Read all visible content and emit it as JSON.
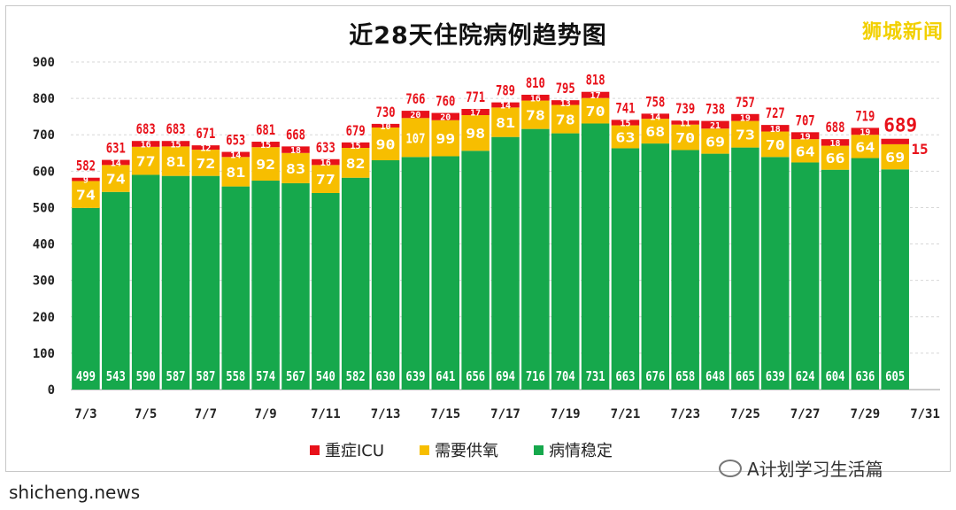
{
  "header": {
    "title": "近28天住院病例趋势图",
    "brand": "狮城新闻"
  },
  "footer": {
    "source": "shicheng.news",
    "watermark": "A计划学习生活篇"
  },
  "legend": [
    {
      "label": "重症ICU",
      "color": "#e8111a"
    },
    {
      "label": "需要供氧",
      "color": "#f7be00"
    },
    {
      "label": "病情稳定",
      "color": "#16a84c"
    }
  ],
  "chart_data": {
    "type": "bar",
    "stacked": true,
    "title": "近28天住院病例趋势图",
    "categories": [
      "7/3",
      "7/4",
      "7/5",
      "7/6",
      "7/7",
      "7/8",
      "7/9",
      "7/10",
      "7/11",
      "7/12",
      "7/13",
      "7/14",
      "7/15",
      "7/16",
      "7/17",
      "7/18",
      "7/19",
      "7/20",
      "7/21",
      "7/22",
      "7/23",
      "7/24",
      "7/25",
      "7/26",
      "7/27",
      "7/28",
      "7/29",
      "7/30",
      "7/31"
    ],
    "x_tick_labels": [
      "7/3",
      "7/5",
      "7/7",
      "7/9",
      "7/11",
      "7/13",
      "7/15",
      "7/17",
      "7/19",
      "7/21",
      "7/23",
      "7/25",
      "7/27",
      "7/29",
      "7/31"
    ],
    "y_ticks": [
      0,
      100,
      200,
      300,
      400,
      500,
      600,
      700,
      800,
      900
    ],
    "ylim": [
      0,
      900
    ],
    "gridlines": true,
    "legend_position": "bottom",
    "series": [
      {
        "name": "病情稳定",
        "color": "#16a84c",
        "values": [
          499,
          543,
          590,
          587,
          587,
          558,
          574,
          567,
          540,
          582,
          630,
          639,
          641,
          656,
          694,
          716,
          704,
          731,
          663,
          676,
          658,
          648,
          665,
          639,
          624,
          604,
          636,
          605,
          null
        ]
      },
      {
        "name": "需要供氧",
        "color": "#f7be00",
        "values": [
          74,
          74,
          77,
          81,
          72,
          81,
          92,
          83,
          77,
          82,
          90,
          107,
          99,
          98,
          81,
          78,
          78,
          70,
          63,
          68,
          70,
          69,
          73,
          70,
          64,
          66,
          64,
          69,
          null
        ]
      },
      {
        "name": "重症ICU",
        "color": "#e8111a",
        "values": [
          9,
          14,
          16,
          15,
          12,
          14,
          15,
          18,
          16,
          15,
          10,
          20,
          20,
          17,
          14,
          16,
          13,
          17,
          15,
          14,
          11,
          21,
          19,
          18,
          19,
          18,
          19,
          15,
          null
        ]
      }
    ],
    "totals": [
      582,
      631,
      683,
      683,
      671,
      653,
      681,
      668,
      633,
      679,
      730,
      766,
      760,
      771,
      789,
      810,
      795,
      818,
      741,
      758,
      739,
      738,
      757,
      727,
      707,
      688,
      719,
      689,
      null
    ]
  }
}
